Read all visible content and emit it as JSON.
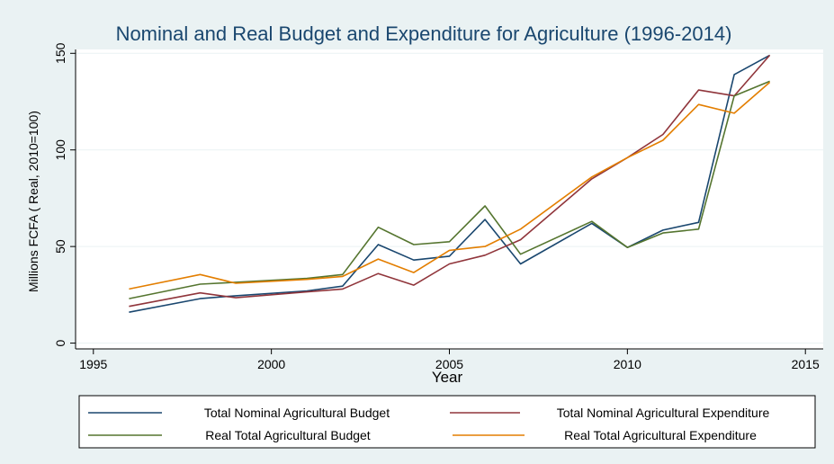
{
  "chart_data": {
    "type": "line",
    "title": "Nominal and Real Budget and Expenditure for Agriculture (1996-2014)",
    "xlabel": "Year",
    "ylabel": "Millions FCFA ( Real, 2010=100)",
    "xlim": [
      1994.5,
      2015.5
    ],
    "ylim": [
      -3,
      152
    ],
    "xticks": [
      1995,
      2000,
      2005,
      2010,
      2015
    ],
    "xtick_labels": [
      "1995",
      "2000",
      "2005",
      "2010",
      "2015"
    ],
    "yticks": [
      0,
      50,
      100,
      150
    ],
    "ytick_labels": [
      "0",
      "50",
      "100",
      "150"
    ],
    "grid": "horizontal",
    "legend_position": "bottom",
    "series": [
      {
        "name": "Total Nominal Agricultural Budget",
        "color": "#1a476f",
        "x": [
          1996,
          1998,
          1999,
          2001,
          2002,
          2003,
          2004,
          2005,
          2006,
          2007,
          2009,
          2010,
          2011,
          2012,
          2013,
          2014
        ],
        "y": [
          16,
          23,
          24.5,
          27,
          29.5,
          51,
          43,
          45,
          64,
          41,
          62,
          49.5,
          58.5,
          62.5,
          139,
          149
        ]
      },
      {
        "name": "Total Nominal Agricultural Expenditure",
        "color": "#90353b",
        "x": [
          1996,
          1998,
          1999,
          2001,
          2002,
          2003,
          2004,
          2005,
          2006,
          2007,
          2009,
          2010,
          2011,
          2012,
          2013,
          2014
        ],
        "y": [
          19,
          26,
          23.5,
          26.5,
          28,
          36,
          30,
          41,
          45.5,
          53.5,
          85,
          96,
          108,
          131,
          128,
          149
        ]
      },
      {
        "name": "Real Total Agricultural Budget",
        "color": "#55752f",
        "x": [
          1996,
          1998,
          1999,
          2001,
          2002,
          2003,
          2004,
          2005,
          2006,
          2007,
          2009,
          2010,
          2011,
          2012,
          2013,
          2014
        ],
        "y": [
          23,
          30.5,
          31.5,
          33.5,
          35.5,
          60,
          51,
          52.5,
          71,
          46,
          63,
          49.5,
          57,
          59,
          128,
          135.5
        ]
      },
      {
        "name": "Real Total Agricultural Expenditure",
        "color": "#e37e00",
        "x": [
          1996,
          1998,
          1999,
          2001,
          2002,
          2003,
          2004,
          2005,
          2006,
          2007,
          2009,
          2010,
          2011,
          2012,
          2013,
          2014
        ],
        "y": [
          28,
          35.5,
          31,
          33,
          34.5,
          43.5,
          36.5,
          48,
          50,
          59,
          86,
          96,
          105,
          123.5,
          119,
          135
        ]
      }
    ]
  }
}
